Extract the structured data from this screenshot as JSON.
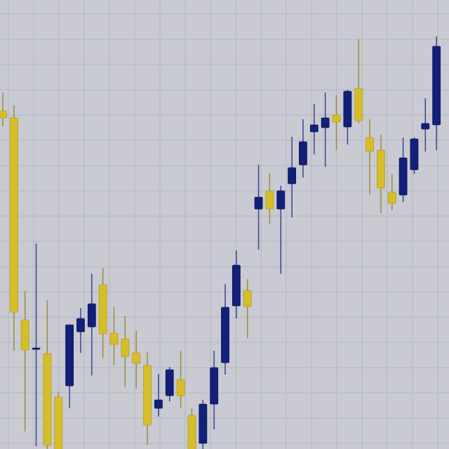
{
  "colors": {
    "background": "#c9cad2",
    "grid": "#b4b6c1",
    "bullish": "#12207a",
    "bearish": "#d6bd2a",
    "wick_bullish": "#3a4592",
    "wick_bearish": "#9a8f3a"
  },
  "chart_data": {
    "type": "candlestick",
    "title": "",
    "xlabel": "",
    "ylabel": "",
    "grid": true,
    "legend": "none",
    "ylim": [
      0,
      640
    ],
    "candles": [
      {
        "open": 482,
        "high": 508,
        "low": 460,
        "close": 472
      },
      {
        "open": 472,
        "high": 490,
        "low": 140,
        "close": 195
      },
      {
        "open": 184,
        "high": 225,
        "low": 25,
        "close": 141
      },
      {
        "open": 144,
        "high": 293,
        "low": 4,
        "close": 144
      },
      {
        "open": 136,
        "high": 212,
        "low": -20,
        "close": 5
      },
      {
        "open": 74,
        "high": 82,
        "low": -20,
        "close": -20
      },
      {
        "open": 90,
        "high": 175,
        "low": 58,
        "close": 177
      },
      {
        "open": 167,
        "high": 201,
        "low": 137,
        "close": 186
      },
      {
        "open": 174,
        "high": 250,
        "low": 105,
        "close": 207
      },
      {
        "open": 234,
        "high": 258,
        "low": 130,
        "close": 164
      },
      {
        "open": 165,
        "high": 202,
        "low": 119,
        "close": 149
      },
      {
        "open": 157,
        "high": 190,
        "low": 88,
        "close": 132
      },
      {
        "open": 137,
        "high": 169,
        "low": 86,
        "close": 122
      },
      {
        "open": 119,
        "high": 138,
        "low": 6,
        "close": 34
      },
      {
        "open": 58,
        "high": 107,
        "low": 46,
        "close": 70
      },
      {
        "open": 76,
        "high": 117,
        "low": 68,
        "close": 113
      },
      {
        "open": 99,
        "high": 140,
        "low": 59,
        "close": 76
      },
      {
        "open": 48,
        "high": 58,
        "low": -20,
        "close": -20
      },
      {
        "open": 8,
        "high": 70,
        "low": -20,
        "close": 64
      },
      {
        "open": 64,
        "high": 140,
        "low": 28,
        "close": 116
      },
      {
        "open": 123,
        "high": 235,
        "low": 106,
        "close": 202
      },
      {
        "open": 204,
        "high": 283,
        "low": 186,
        "close": 262
      },
      {
        "open": 226,
        "high": 242,
        "low": 158,
        "close": 203
      },
      {
        "open": 342,
        "high": 405,
        "low": 284,
        "close": 359
      },
      {
        "open": 368,
        "high": 393,
        "low": 320,
        "close": 342
      },
      {
        "open": 342,
        "high": 375,
        "low": 250,
        "close": 368
      },
      {
        "open": 378,
        "high": 445,
        "low": 330,
        "close": 401
      },
      {
        "open": 405,
        "high": 470,
        "low": 387,
        "close": 438
      },
      {
        "open": 452,
        "high": 492,
        "low": 420,
        "close": 462
      },
      {
        "open": 458,
        "high": 508,
        "low": 402,
        "close": 472
      },
      {
        "open": 476,
        "high": 504,
        "low": 426,
        "close": 466
      },
      {
        "open": 459,
        "high": 512,
        "low": 434,
        "close": 510
      },
      {
        "open": 514,
        "high": 584,
        "low": 464,
        "close": 468
      },
      {
        "open": 444,
        "high": 470,
        "low": 362,
        "close": 424
      },
      {
        "open": 426,
        "high": 448,
        "low": 336,
        "close": 372
      },
      {
        "open": 366,
        "high": 392,
        "low": 340,
        "close": 350
      },
      {
        "open": 362,
        "high": 444,
        "low": 352,
        "close": 415
      },
      {
        "open": 398,
        "high": 444,
        "low": 392,
        "close": 442
      },
      {
        "open": 456,
        "high": 500,
        "low": 424,
        "close": 464
      },
      {
        "open": 462,
        "high": 588,
        "low": 426,
        "close": 574
      }
    ]
  }
}
